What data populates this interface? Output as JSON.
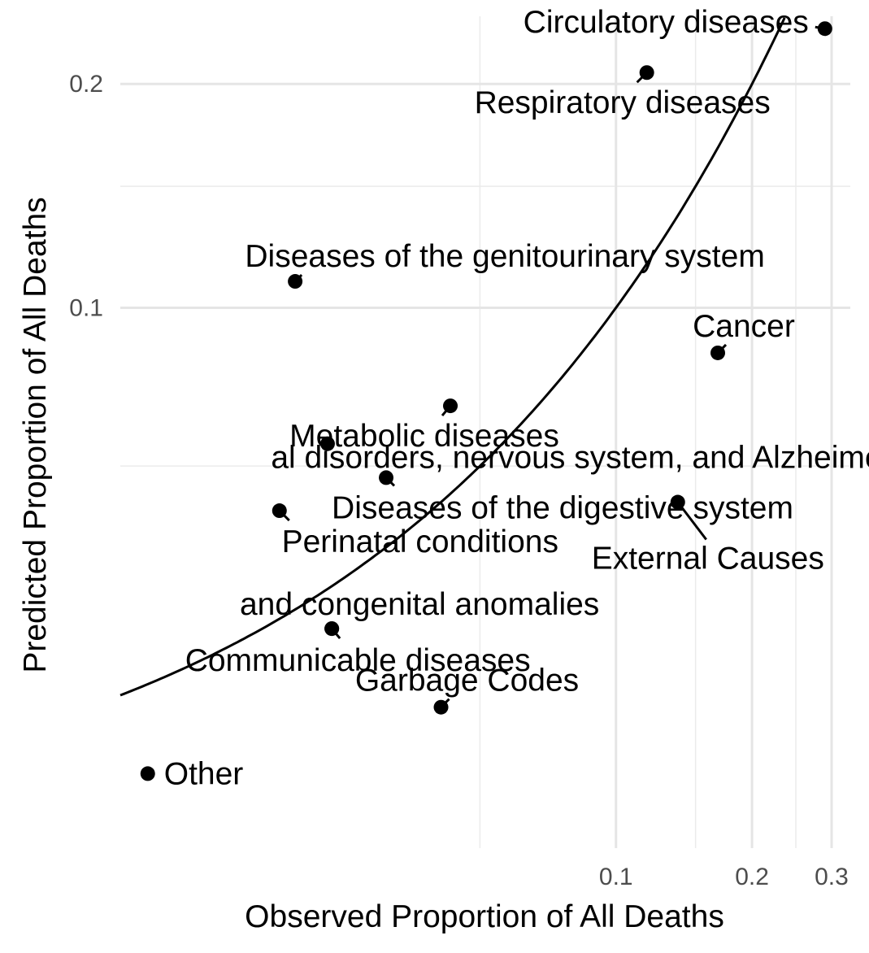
{
  "chart_data": {
    "type": "scatter",
    "title": "",
    "xlabel": "Observed Proportion of All Deaths",
    "ylabel": "Predicted Proportion of All Deaths",
    "x_scale": "log10",
    "y_scale": "sqrt",
    "xlim": [
      0.008,
      0.33
    ],
    "ylim": [
      0.0,
      0.237
    ],
    "x_ticks": [
      {
        "value": 0.1,
        "label": "0.1"
      },
      {
        "value": 0.2,
        "label": "0.2"
      },
      {
        "value": 0.3,
        "label": "0.3"
      }
    ],
    "x_minor_ticks": [
      0.05,
      0.15,
      0.25
    ],
    "y_ticks": [
      {
        "value": 0.1,
        "label": "0.1"
      },
      {
        "value": 0.2,
        "label": "0.2"
      }
    ],
    "y_minor_ticks": [
      0.05,
      0.15
    ],
    "grid": true,
    "reference_line": "y = x",
    "points": [
      {
        "label": "Circulatory diseases",
        "x": 0.29,
        "y": 0.23
      },
      {
        "label": "Respiratory diseases",
        "x": 0.117,
        "y": 0.206
      },
      {
        "label": "Diseases of the genitourinary system",
        "x": 0.0195,
        "y": 0.11
      },
      {
        "label": "Cancer",
        "x": 0.168,
        "y": 0.084
      },
      {
        "label": "Metabolic diseases",
        "x": 0.043,
        "y": 0.067
      },
      {
        "label": "al disorders, nervous system, and Alzheimer",
        "x": 0.023,
        "y": 0.056
      },
      {
        "label": "Diseases of the digestive system",
        "x": 0.031,
        "y": 0.047
      },
      {
        "label": "External Causes",
        "x": 0.137,
        "y": 0.041
      },
      {
        "label": "Perinatal conditions",
        "x": 0.018,
        "y": 0.039
      },
      {
        "label": "and congenital anomalies",
        "x": 0.0235,
        "y": 0.0165
      },
      {
        "label": "Communicable diseases",
        "x": 0.0235,
        "y": 0.0165
      },
      {
        "label": "Garbage Codes",
        "x": 0.041,
        "y": 0.0068
      },
      {
        "label": "Other",
        "x": 0.0092,
        "y": 0.0019
      }
    ]
  }
}
